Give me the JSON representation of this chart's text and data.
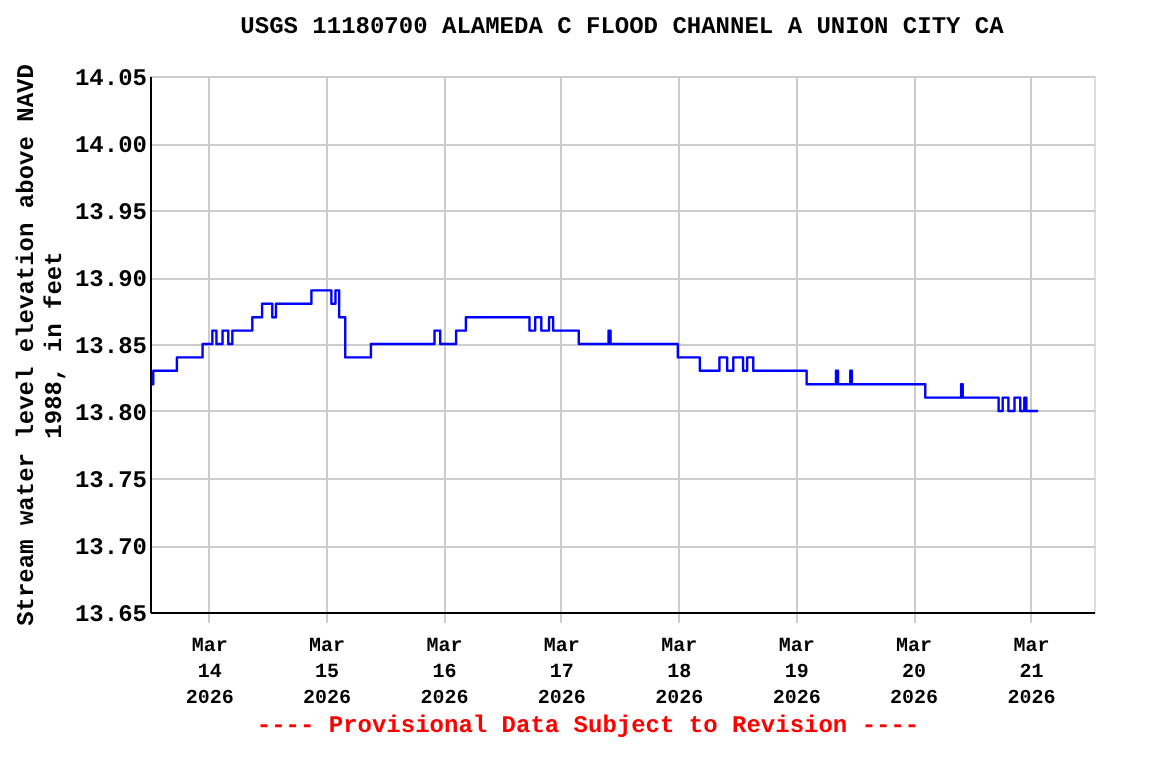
{
  "chart_data": {
    "type": "step",
    "title": "USGS 11180700 ALAMEDA C FLOOD CHANNEL A UNION CITY CA",
    "ylabel": "Stream water level elevation above NAVD 1988, in feet",
    "annotations": [
      "---- Provisional Data Subject to Revision ----"
    ],
    "x": [
      "2026-03-13T12:15",
      "2026-03-13T12:40",
      "2026-03-13T17:30",
      "2026-03-13T22:45",
      "2026-03-14T00:45",
      "2026-03-14T01:35",
      "2026-03-14T02:50",
      "2026-03-14T04:00",
      "2026-03-14T04:50",
      "2026-03-14T08:55",
      "2026-03-14T10:55",
      "2026-03-14T13:00",
      "2026-03-14T13:45",
      "2026-03-14T21:00",
      "2026-03-15T01:05",
      "2026-03-15T01:55",
      "2026-03-15T02:40",
      "2026-03-15T03:55",
      "2026-03-15T09:10",
      "2026-03-15T22:10",
      "2026-03-15T23:20",
      "2026-03-16T02:35",
      "2026-03-16T04:35",
      "2026-03-16T17:35",
      "2026-03-16T18:45",
      "2026-03-16T20:00",
      "2026-03-16T21:35",
      "2026-03-16T22:25",
      "2026-03-17T03:40",
      "2026-03-17T09:45",
      "2026-03-17T10:10",
      "2026-03-17T23:55",
      "2026-03-18T04:25",
      "2026-03-18T08:25",
      "2026-03-18T10:00",
      "2026-03-18T11:15",
      "2026-03-18T13:15",
      "2026-03-18T14:05",
      "2026-03-18T15:20",
      "2026-03-19T02:15",
      "2026-03-19T08:15",
      "2026-03-19T08:40",
      "2026-03-19T11:10",
      "2026-03-19T11:30",
      "2026-03-20T02:30",
      "2026-03-20T09:50",
      "2026-03-20T10:10",
      "2026-03-20T17:30",
      "2026-03-20T18:20",
      "2026-03-20T19:30",
      "2026-03-20T20:45",
      "2026-03-20T21:55",
      "2026-03-20T22:45",
      "2026-03-20T23:10",
      "2026-03-21T01:35"
    ],
    "series": [
      {
        "color": "#0000ff",
        "values": [
          13.82,
          13.83,
          13.84,
          13.85,
          13.86,
          13.85,
          13.86,
          13.85,
          13.86,
          13.87,
          13.88,
          13.87,
          13.88,
          13.89,
          13.88,
          13.89,
          13.87,
          13.84,
          13.85,
          13.86,
          13.85,
          13.86,
          13.87,
          13.86,
          13.87,
          13.86,
          13.87,
          13.86,
          13.85,
          13.86,
          13.85,
          13.84,
          13.83,
          13.84,
          13.83,
          13.84,
          13.83,
          13.84,
          13.83,
          13.82,
          13.83,
          13.82,
          13.83,
          13.82,
          13.81,
          13.82,
          13.81,
          13.8,
          13.81,
          13.8,
          13.81,
          13.8,
          13.81,
          13.8,
          13.8
        ]
      }
    ],
    "xlim": [
      "2026-03-13T12:00",
      "2026-03-21T13:00"
    ],
    "xticks": [
      {
        "value": "2026-03-14",
        "label": "Mar\n14\n2026"
      },
      {
        "value": "2026-03-15",
        "label": "Mar\n15\n2026"
      },
      {
        "value": "2026-03-16",
        "label": "Mar\n16\n2026"
      },
      {
        "value": "2026-03-17",
        "label": "Mar\n17\n2026"
      },
      {
        "value": "2026-03-18",
        "label": "Mar\n18\n2026"
      },
      {
        "value": "2026-03-19",
        "label": "Mar\n19\n2026"
      },
      {
        "value": "2026-03-20",
        "label": "Mar\n20\n2026"
      },
      {
        "value": "2026-03-21",
        "label": "Mar\n21\n2026"
      }
    ],
    "ylim": [
      13.65,
      14.05
    ],
    "yticks": [
      {
        "value": 13.65,
        "label": "13.65"
      },
      {
        "value": 13.7,
        "label": "13.70"
      },
      {
        "value": 13.75,
        "label": "13.75"
      },
      {
        "value": 13.8,
        "label": "13.80"
      },
      {
        "value": 13.85,
        "label": "13.85"
      },
      {
        "value": 13.9,
        "label": "13.90"
      },
      {
        "value": 13.95,
        "label": "13.95"
      },
      {
        "value": 14.0,
        "label": "14.00"
      },
      {
        "value": 14.05,
        "label": "14.05"
      }
    ],
    "grid": true
  }
}
